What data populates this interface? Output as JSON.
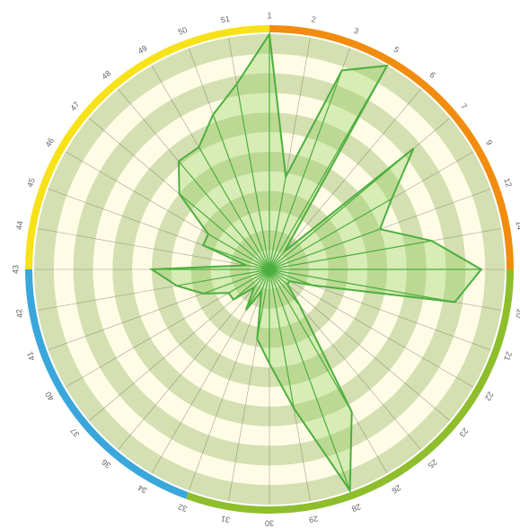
{
  "chart_data": {
    "type": "radar",
    "title": "",
    "categories": [
      "1",
      "2",
      "3",
      "5",
      "6",
      "7",
      "9",
      "12",
      "14",
      "16",
      "20",
      "21",
      "22",
      "23",
      "25",
      "26",
      "28",
      "29",
      "30",
      "31",
      "32",
      "34",
      "36",
      "37",
      "40",
      "41",
      "42",
      "43",
      "44",
      "45",
      "46",
      "47",
      "48",
      "49",
      "50",
      "51"
    ],
    "values": [
      10,
      4,
      9,
      10,
      1,
      8,
      6,
      5,
      7,
      9,
      8,
      2,
      1,
      1,
      2,
      7,
      10,
      6,
      4,
      3,
      1,
      2,
      1,
      2,
      2,
      3,
      4,
      5,
      1,
      3,
      3,
      5,
      6,
      6,
      7,
      8
    ],
    "rlim": [
      0,
      10
    ],
    "colors": {
      "background": "#fffce6",
      "band": "#ccd9a8",
      "series_stroke": "#4caf3e",
      "series_fill": "#8fcf5c"
    },
    "outer_ring_segments": [
      {
        "color": "#f28c0f",
        "from": "1",
        "to": "16"
      },
      {
        "color": "#8fbe2c",
        "from": "16",
        "to": "32"
      },
      {
        "color": "#3aa7dc",
        "from": "32",
        "to": "43"
      },
      {
        "color": "#f7e21a",
        "from": "43",
        "to": "1"
      }
    ]
  }
}
